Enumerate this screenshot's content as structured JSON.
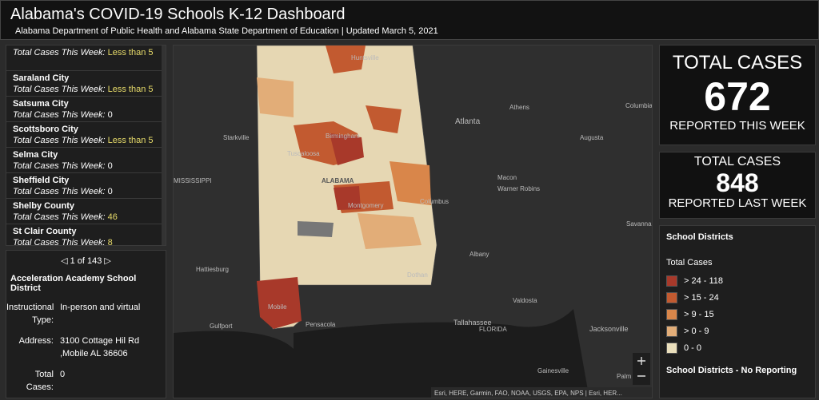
{
  "header": {
    "title": "Alabama's COVID-19 Schools K-12 Dashboard",
    "subtitle": "Alabama Department of Public Health and Alabama State Department of Education | Updated March 5, 2021"
  },
  "list": {
    "items": [
      {
        "label": "Total Cases This Week:",
        "value": "Less than 5"
      },
      {
        "name": "Saraland City",
        "label": "Total Cases This Week:",
        "value": "Less than 5"
      },
      {
        "name": "Satsuma City",
        "label": "Total Cases This Week:",
        "value": "0"
      },
      {
        "name": "Scottsboro City",
        "label": "Total Cases This Week:",
        "value": "Less than 5"
      },
      {
        "name": "Selma City",
        "label": "Total Cases This Week:",
        "value": "0"
      },
      {
        "name": "Sheffield City",
        "label": "Total Cases This Week:",
        "value": "0"
      },
      {
        "name": "Shelby County",
        "label": "Total Cases This Week:",
        "value": "46"
      },
      {
        "name": "St Clair County",
        "label": "Total Cases This Week:",
        "value": "8"
      }
    ]
  },
  "detail": {
    "pager": "1 of 143",
    "title": "Acceleration Academy School District",
    "fields": [
      {
        "label": "Instructional Type:",
        "lines": [
          "In-person and virtual"
        ]
      },
      {
        "label": "Address:",
        "lines": [
          "3100 Cottage Hil Rd",
          ",Mobile AL 36606"
        ]
      },
      {
        "label": "Total Cases:",
        "lines": [
          "0"
        ]
      }
    ]
  },
  "stats": [
    {
      "top": "TOTAL CASES",
      "value": 672,
      "bottom": "REPORTED THIS WEEK"
    },
    {
      "top": "TOTAL CASES",
      "value": 848,
      "bottom": "REPORTED LAST WEEK"
    }
  ],
  "legend": {
    "title": "School Districts",
    "subtitle": "Total Cases",
    "items": [
      {
        "label": "> 24 - 118",
        "color": "#a8392a"
      },
      {
        "label": "> 15 - 24",
        "color": "#c25a30"
      },
      {
        "label": "> 9 - 15",
        "color": "#d9864a"
      },
      {
        "label": "> 0 - 9",
        "color": "#e2ad78"
      },
      {
        "label": "0 - 0",
        "color": "#eadfbc"
      }
    ],
    "no_reporting": "School Districts - No Reporting"
  },
  "map": {
    "labels": [
      "Huntsville",
      "Athens",
      "Columbia",
      "Atlanta",
      "Starkville",
      "Birmingham",
      "Tuscaloosa",
      "Augusta",
      "MISSISSIPPI",
      "ALABAMA",
      "Macon",
      "Warner Robins",
      "Columbus",
      "Montgomery",
      "Savannah",
      "Hattiesburg",
      "Albany",
      "Dothan",
      "Mobile",
      "Valdosta",
      "Gulfport",
      "Pensacola",
      "Tallahassee",
      "FLORIDA",
      "Jacksonville",
      "Gainesville",
      "Palm C"
    ],
    "attribution": "Esri, HERE, Garmin, FAO, NOAA, USGS, EPA, NPS | Esri, HER..."
  }
}
